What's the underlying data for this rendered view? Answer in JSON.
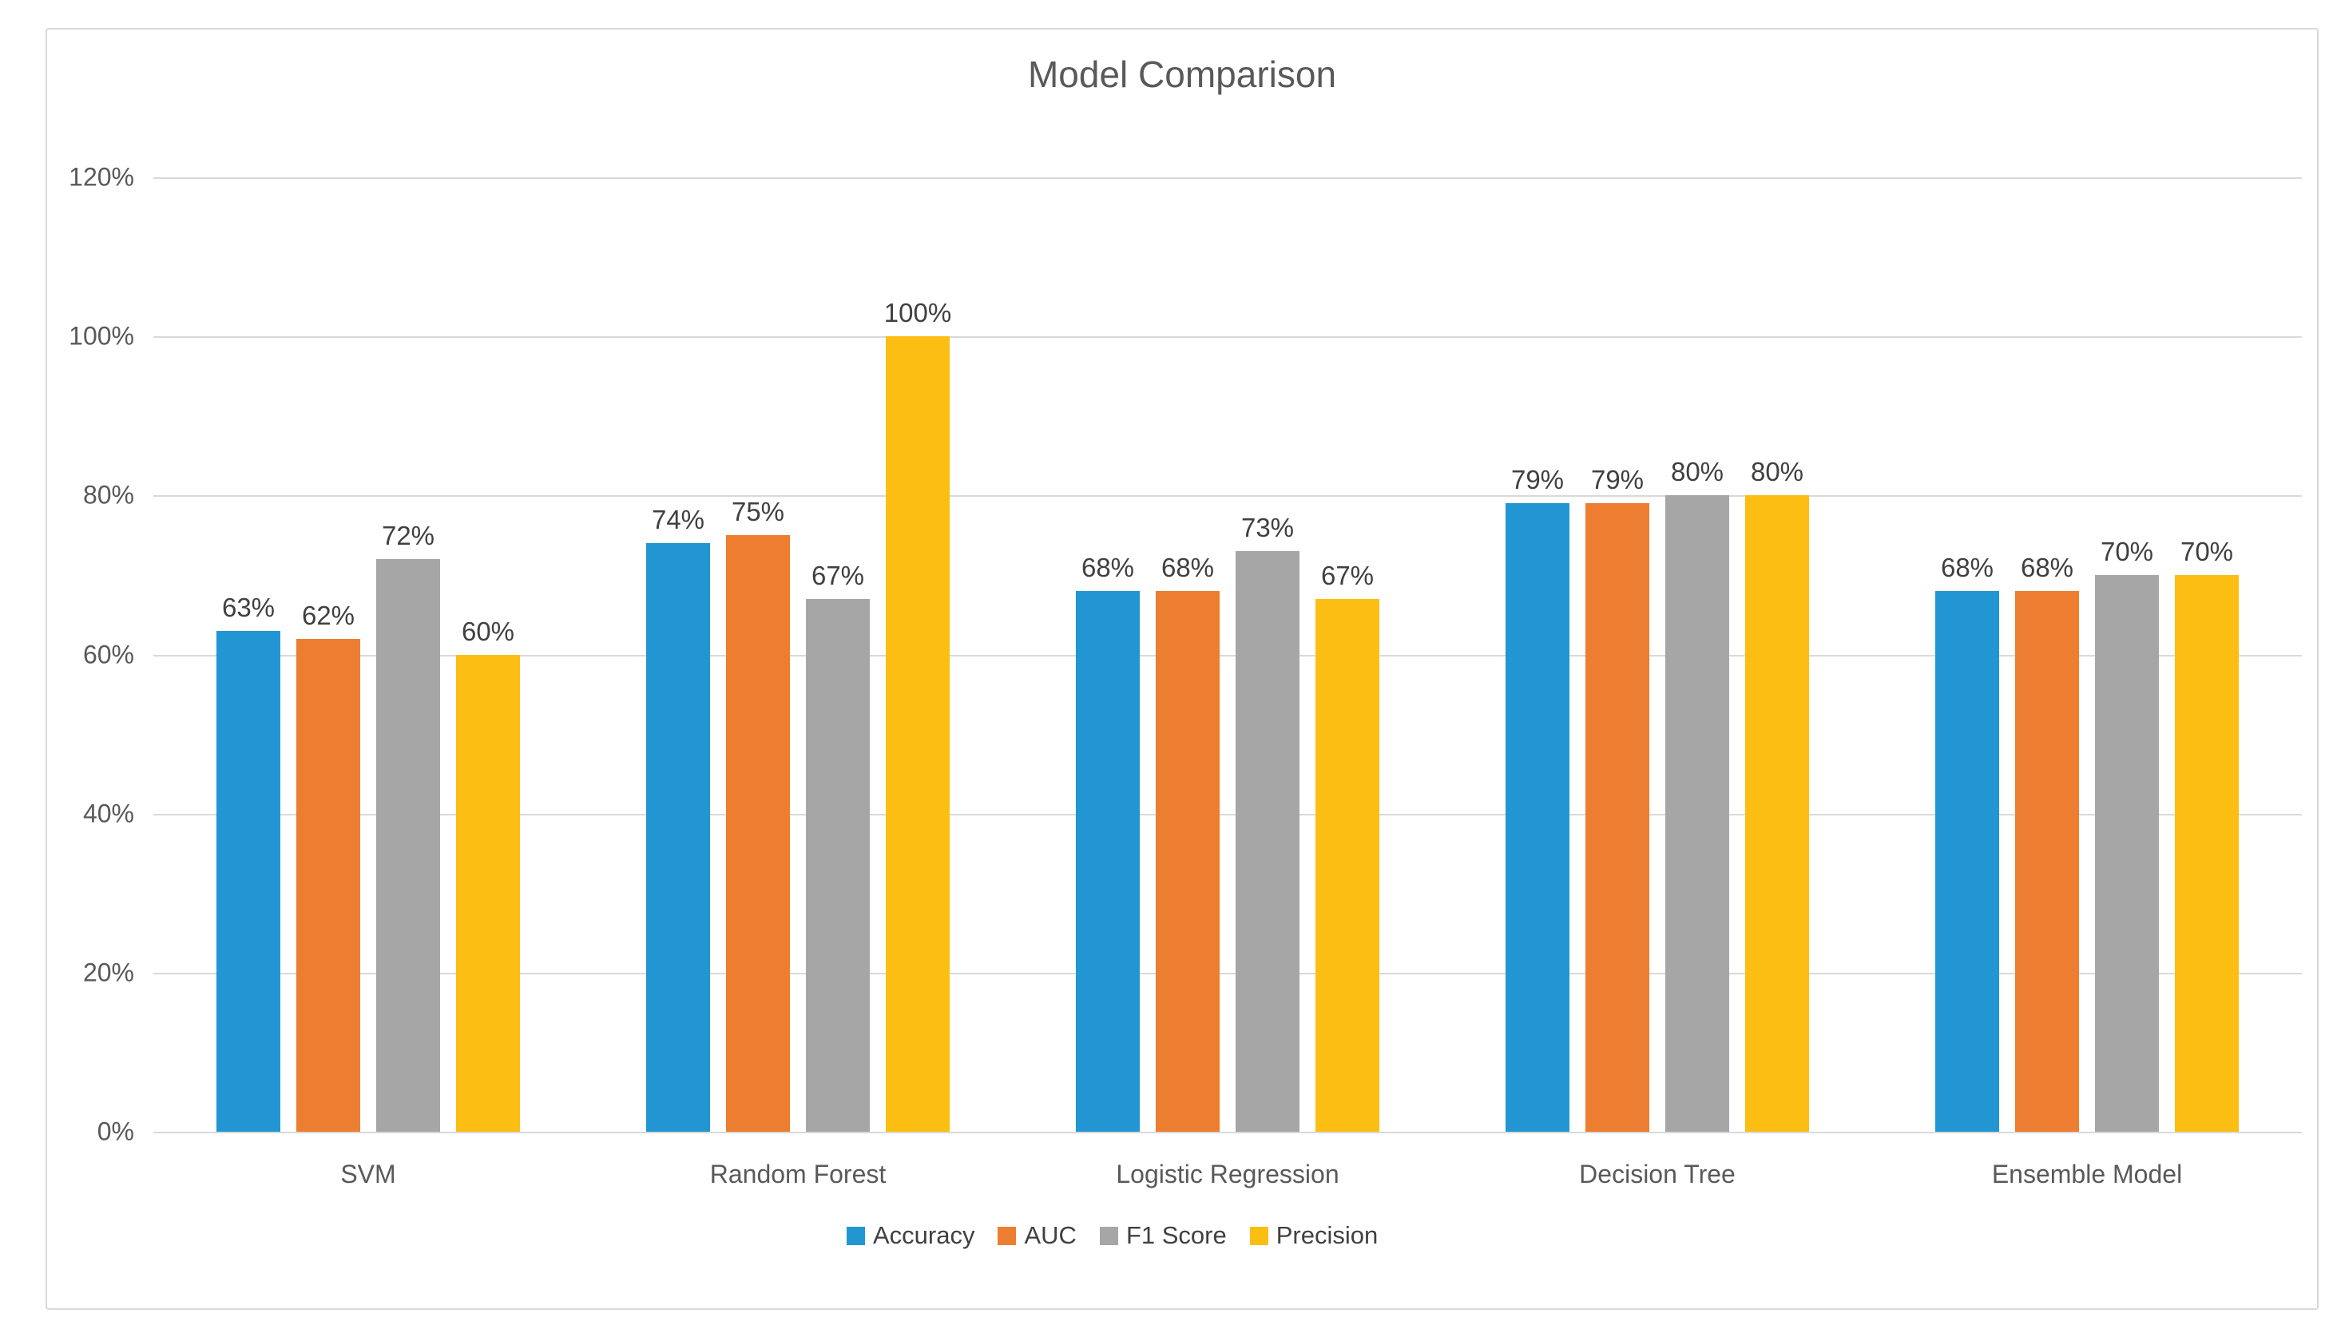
{
  "chart_data": {
    "type": "bar",
    "title": "Model Comparison",
    "categories": [
      "SVM",
      "Random Forest",
      "Logistic Regression",
      "Decision Tree",
      "Ensemble Model"
    ],
    "series": [
      {
        "name": "Accuracy",
        "color": "#2196D3",
        "values": [
          63,
          74,
          68,
          79,
          68
        ]
      },
      {
        "name": "AUC",
        "color": "#ED7D31",
        "values": [
          62,
          75,
          68,
          79,
          68
        ]
      },
      {
        "name": "F1 Score",
        "color": "#A6A6A6",
        "values": [
          72,
          67,
          73,
          80,
          70
        ]
      },
      {
        "name": "Precision",
        "color": "#FCBE13",
        "values": [
          60,
          100,
          67,
          80,
          70
        ]
      }
    ],
    "xlabel": "",
    "ylabel": "",
    "ylim": [
      0,
      120
    ],
    "ytick_step": 20,
    "ytick_labels": [
      "0%",
      "20%",
      "40%",
      "60%",
      "80%",
      "100%",
      "120%"
    ],
    "data_label_suffix": "%",
    "grid": true,
    "legend_position": "bottom"
  },
  "colors": {
    "title_text": "#595959",
    "axis_text": "#595959",
    "data_label_text": "#404040",
    "gridline": "#D9D9D9",
    "border": "#D9D9D9",
    "background": "#FFFFFF"
  }
}
